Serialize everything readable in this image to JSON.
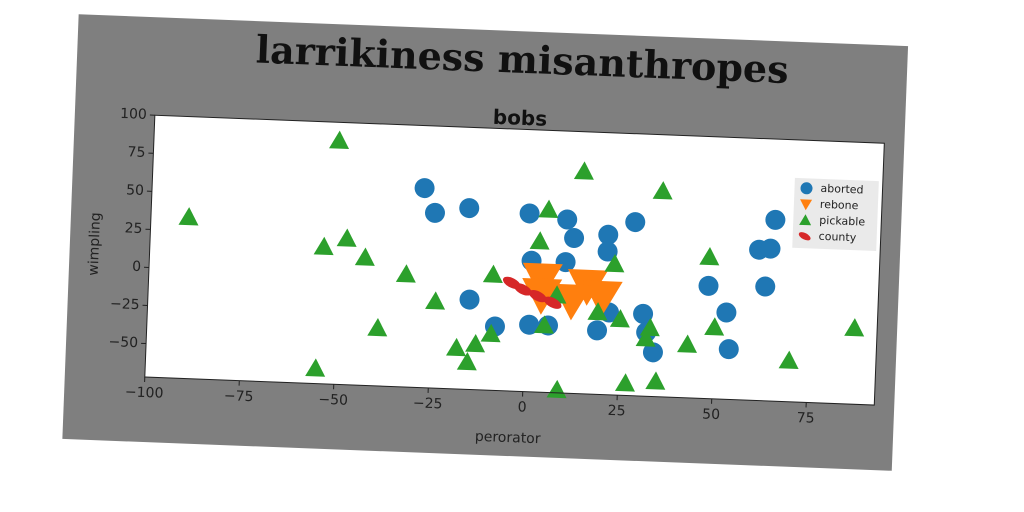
{
  "chart_data": {
    "type": "scatter",
    "title": "larrikiness misanthropes",
    "subtitle": "bobs",
    "xlabel": "perorator",
    "ylabel": "wimpling",
    "xlim": [
      -100,
      93
    ],
    "ylim": [
      -72,
      100
    ],
    "xticks": [
      {
        "value": -100,
        "label": "−100"
      },
      {
        "value": -75,
        "label": "−75"
      },
      {
        "value": -50,
        "label": "−50"
      },
      {
        "value": -25,
        "label": "−25"
      },
      0,
      25,
      50,
      75
    ],
    "yticks": [
      {
        "value": -50,
        "label": "−50"
      },
      {
        "value": -25,
        "label": "−25"
      },
      0,
      25,
      50,
      75,
      100
    ],
    "legend": "upper right",
    "series": [
      {
        "name": "aborted",
        "color": "#1f77b4",
        "marker": "o",
        "x": [
          -28,
          -25,
          -16,
          0,
          10,
          12,
          28,
          21,
          21,
          1,
          10,
          -15,
          -8,
          1,
          6,
          19,
          22,
          31,
          32,
          34,
          48,
          53,
          54,
          61,
          64,
          65,
          63
        ],
        "values": [
          59,
          43,
          47,
          45,
          42,
          30,
          42,
          33,
          22,
          14,
          14,
          -13,
          -30,
          -28,
          -28,
          -30,
          -18,
          -18,
          -30,
          -43,
          2,
          -15,
          -39,
          27,
          28,
          47,
          3
        ]
      },
      {
        "name": "rebone",
        "color": "#ff7f0e",
        "marker": "v",
        "x": [
          4,
          16,
          20,
          12,
          4
        ],
        "values": [
          2,
          -1,
          -8,
          -11,
          -8
        ]
      },
      {
        "name": "pickable",
        "color": "#2ca02c",
        "marker": "^",
        "x": [
          -51,
          -90,
          -54,
          -48,
          -43,
          -32,
          -24,
          -39,
          -55,
          -18,
          -13,
          -15,
          -9,
          -9,
          3,
          5,
          14,
          35,
          23,
          25,
          19,
          5,
          8,
          33,
          32,
          27,
          35,
          43,
          50,
          48,
          70,
          87,
          9
        ],
        "values": [
          88,
          34,
          18,
          24,
          12,
          2,
          -15,
          -34,
          -62,
          -45,
          -42,
          -54,
          -35,
          4,
          27,
          48,
          74,
          63,
          14,
          -22,
          -18,
          -28,
          -8,
          -27,
          -34,
          -64,
          -62,
          -37,
          -25,
          21,
          -45,
          -22,
          -70
        ]
      },
      {
        "name": "county",
        "color": "#d62728",
        "marker": "ellipse",
        "x": [
          -4,
          -1,
          3,
          7
        ],
        "values": [
          -1,
          -5,
          -9,
          -13
        ]
      }
    ]
  }
}
